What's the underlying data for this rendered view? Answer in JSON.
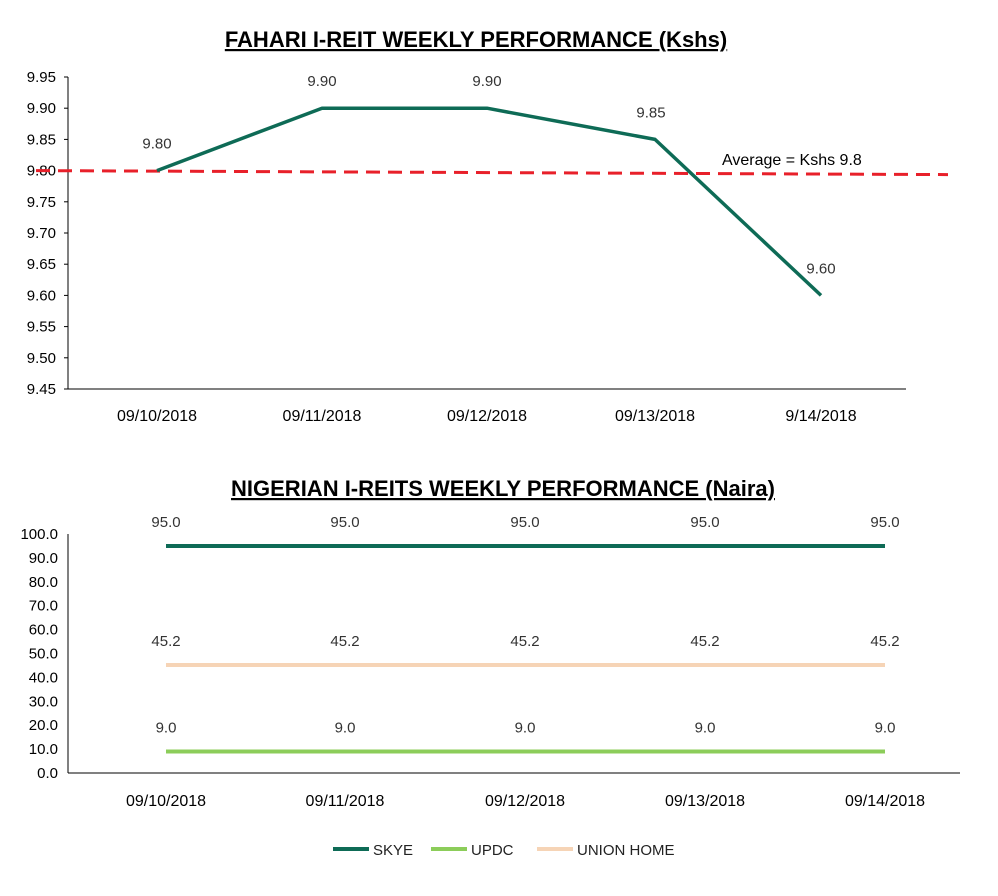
{
  "chart_data": [
    {
      "type": "line",
      "title": "FAHARI I-REIT WEEKLY PERFORMANCE  (Kshs)",
      "categories": [
        "09/10/2018",
        "09/11/2018",
        "09/12/2018",
        "09/13/2018",
        "9/14/2018"
      ],
      "series": [
        {
          "values": [
            9.8,
            9.9,
            9.9,
            9.85,
            9.6
          ],
          "color": "#0e6b56",
          "data_labels": [
            "9.80",
            "9.90",
            "9.90",
            "9.85",
            "9.60"
          ]
        }
      ],
      "reference_line": {
        "value": 9.8,
        "label": "Average = Kshs 9.8",
        "color": "#e8202a",
        "style": "dashed"
      },
      "ylim": [
        9.45,
        9.95
      ],
      "yticks": [
        "9.45",
        "9.50",
        "9.55",
        "9.60",
        "9.65",
        "9.70",
        "9.75",
        "9.80",
        "9.85",
        "9.90",
        "9.95"
      ],
      "grid": false
    },
    {
      "type": "line",
      "title": "NIGERIAN I-REITS WEEKLY PERFORMANCE  (Naira)",
      "categories": [
        "09/10/2018",
        "09/11/2018",
        "09/12/2018",
        "09/13/2018",
        "09/14/2018"
      ],
      "series": [
        {
          "name": "SKYE",
          "values": [
            95.0,
            95.0,
            95.0,
            95.0,
            95.0
          ],
          "color": "#0e6b56",
          "data_labels": [
            "95.0",
            "95.0",
            "95.0",
            "95.0",
            "95.0"
          ]
        },
        {
          "name": "UPDC",
          "values": [
            9.0,
            9.0,
            9.0,
            9.0,
            9.0
          ],
          "color": "#8ccd5a",
          "data_labels": [
            "9.0",
            "9.0",
            "9.0",
            "9.0",
            "9.0"
          ]
        },
        {
          "name": "UNION HOME",
          "values": [
            45.2,
            45.2,
            45.2,
            45.2,
            45.2
          ],
          "color": "#f6d4b6",
          "data_labels": [
            "45.2",
            "45.2",
            "45.2",
            "45.2",
            "45.2"
          ]
        }
      ],
      "ylim": [
        0,
        100
      ],
      "yticks": [
        "0.0",
        "10.0",
        "20.0",
        "30.0",
        "40.0",
        "50.0",
        "60.0",
        "70.0",
        "80.0",
        "90.0",
        "100.0"
      ],
      "legend_position": "bottom",
      "grid": false
    }
  ]
}
